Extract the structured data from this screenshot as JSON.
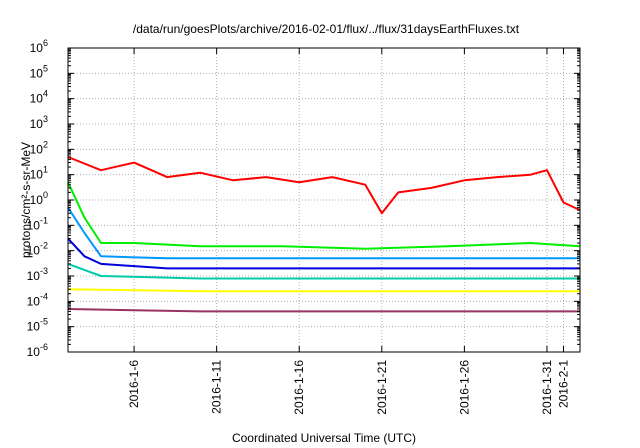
{
  "chart_data": {
    "type": "line",
    "title": "/data/run/goesPlots/archive/2016-02-01/flux/../flux/31daysEarthFluxes.txt",
    "xlabel": "Coordinated Universal Time (UTC)",
    "ylabel": "protons/cm²-s-sr-MeV",
    "y_scale": "log",
    "ylim_exponent": [
      -6,
      6
    ],
    "y_ticks": [
      {
        "base": "10",
        "exp": "-6"
      },
      {
        "base": "10",
        "exp": "-5"
      },
      {
        "base": "10",
        "exp": "-4"
      },
      {
        "base": "10",
        "exp": "-3"
      },
      {
        "base": "10",
        "exp": "-2"
      },
      {
        "base": "10",
        "exp": "-1"
      },
      {
        "base": "10",
        "exp": "0"
      },
      {
        "base": "10",
        "exp": "1"
      },
      {
        "base": "10",
        "exp": "2"
      },
      {
        "base": "10",
        "exp": "3"
      },
      {
        "base": "10",
        "exp": "4"
      },
      {
        "base": "10",
        "exp": "5"
      },
      {
        "base": "10",
        "exp": "6"
      }
    ],
    "xlim": [
      "2016-01-02",
      "2016-02-02"
    ],
    "x_ticks": [
      "2016-1-6",
      "2016-1-11",
      "2016-1-16",
      "2016-1-21",
      "2016-1-26",
      "2016-1-31",
      "2016-2-1"
    ],
    "grid": true,
    "series": [
      {
        "color": "#ff0000",
        "x": [
          "2016-01-02",
          "2016-01-04",
          "2016-01-06",
          "2016-01-08",
          "2016-01-10",
          "2016-01-12",
          "2016-01-14",
          "2016-01-16",
          "2016-01-18",
          "2016-01-20",
          "2016-01-21",
          "2016-01-22",
          "2016-01-24",
          "2016-01-26",
          "2016-01-28",
          "2016-01-30",
          "2016-01-31",
          "2016-02-01",
          "2016-02-02"
        ],
        "y": [
          50,
          15,
          30,
          8,
          12,
          6,
          8,
          5,
          8,
          4,
          0.3,
          2,
          3,
          6,
          8,
          10,
          15,
          0.8,
          0.4
        ]
      },
      {
        "color": "#00ee00",
        "x": [
          "2016-01-02",
          "2016-01-03",
          "2016-01-04",
          "2016-01-06",
          "2016-01-10",
          "2016-01-15",
          "2016-01-20",
          "2016-01-25",
          "2016-01-30",
          "2016-02-02"
        ],
        "y": [
          5,
          0.2,
          0.02,
          0.02,
          0.015,
          0.015,
          0.012,
          0.015,
          0.02,
          0.015
        ]
      },
      {
        "color": "#0099ff",
        "x": [
          "2016-01-02",
          "2016-01-03",
          "2016-01-04",
          "2016-01-08",
          "2016-01-14",
          "2016-01-20",
          "2016-01-26",
          "2016-02-02"
        ],
        "y": [
          0.5,
          0.05,
          0.006,
          0.005,
          0.005,
          0.005,
          0.005,
          0.005
        ]
      },
      {
        "color": "#0000dd",
        "x": [
          "2016-01-02",
          "2016-01-03",
          "2016-01-04",
          "2016-01-08",
          "2016-01-14",
          "2016-01-20",
          "2016-01-26",
          "2016-02-02"
        ],
        "y": [
          0.03,
          0.006,
          0.003,
          0.002,
          0.002,
          0.002,
          0.002,
          0.002
        ]
      },
      {
        "color": "#00ccaa",
        "x": [
          "2016-01-02",
          "2016-01-04",
          "2016-01-10",
          "2016-01-20",
          "2016-01-30",
          "2016-02-02"
        ],
        "y": [
          0.003,
          0.001,
          0.0008,
          0.0008,
          0.0008,
          0.0008
        ]
      },
      {
        "color": "#ffff00",
        "x": [
          "2016-01-02",
          "2016-01-10",
          "2016-01-20",
          "2016-01-30",
          "2016-02-02"
        ],
        "y": [
          0.0003,
          0.00025,
          0.00025,
          0.00025,
          0.00025
        ]
      },
      {
        "color": "#993366",
        "x": [
          "2016-01-02",
          "2016-01-10",
          "2016-01-20",
          "2016-01-30",
          "2016-02-02"
        ],
        "y": [
          5e-05,
          4e-05,
          4e-05,
          4e-05,
          4e-05
        ]
      }
    ]
  }
}
